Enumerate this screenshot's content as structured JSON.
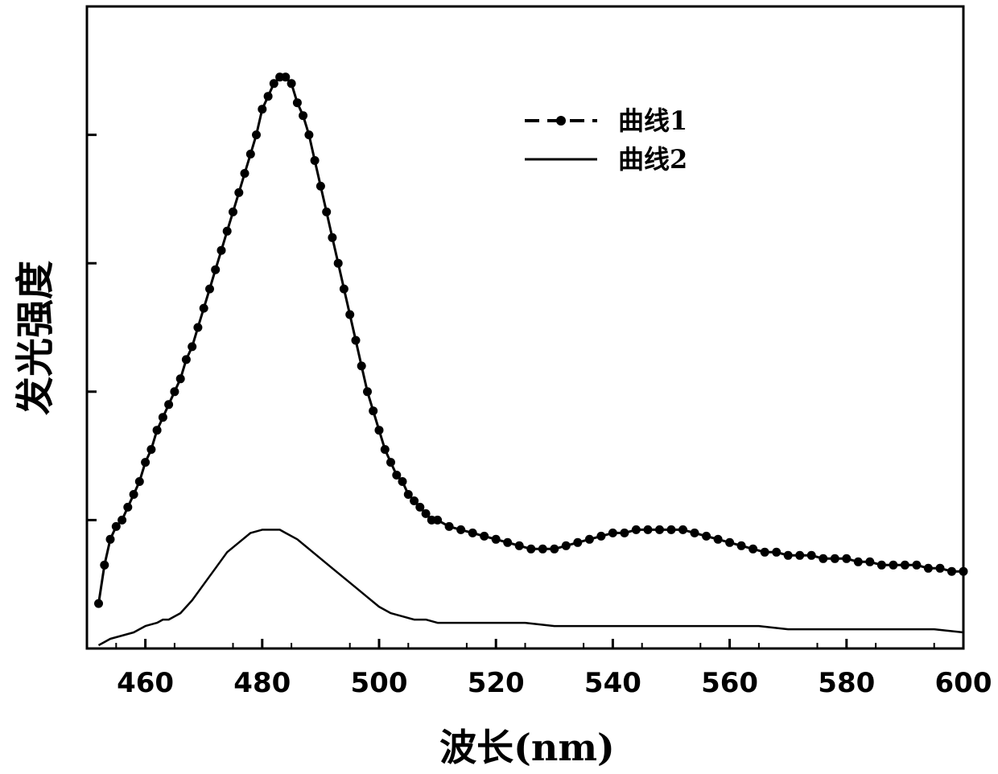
{
  "chart_data": {
    "type": "line",
    "title": "",
    "xlabel": "波长(nm)",
    "ylabel": "发光强度",
    "xlim": [
      450,
      600
    ],
    "ylim": [
      0,
      100
    ],
    "x_ticks": [
      460,
      480,
      500,
      520,
      540,
      560,
      580,
      600
    ],
    "x_tick_labels": [
      "460",
      "480",
      "500",
      "520",
      "540",
      "560",
      "580",
      "600"
    ],
    "y_ticks": [
      20,
      40,
      60,
      80,
      100
    ],
    "y_tick_labels_visible": false,
    "grid": false,
    "legend_position": "top-right",
    "series": [
      {
        "name": "曲线1",
        "style": "dashed line with filled circle markers",
        "color": "#000000",
        "x": [
          452,
          453,
          454,
          455,
          456,
          457,
          458,
          459,
          460,
          461,
          462,
          463,
          464,
          465,
          466,
          467,
          468,
          469,
          470,
          471,
          472,
          473,
          474,
          475,
          476,
          477,
          478,
          479,
          480,
          481,
          482,
          483,
          484,
          485,
          486,
          487,
          488,
          489,
          490,
          491,
          492,
          493,
          494,
          495,
          496,
          497,
          498,
          499,
          500,
          501,
          502,
          503,
          504,
          505,
          506,
          507,
          508,
          509,
          510,
          512,
          514,
          516,
          518,
          520,
          522,
          524,
          526,
          528,
          530,
          532,
          534,
          536,
          538,
          540,
          542,
          544,
          546,
          548,
          550,
          552,
          554,
          556,
          558,
          560,
          562,
          564,
          566,
          568,
          570,
          572,
          574,
          576,
          578,
          580,
          582,
          584,
          586,
          588,
          590,
          592,
          594,
          596,
          598,
          600
        ],
        "y": [
          7,
          13,
          17,
          19,
          20,
          22,
          24,
          26,
          29,
          31,
          34,
          36,
          38,
          40,
          42,
          45,
          47,
          50,
          53,
          56,
          59,
          62,
          65,
          68,
          71,
          74,
          77,
          80,
          84,
          86,
          88,
          89,
          89,
          88,
          85,
          83,
          80,
          76,
          72,
          68,
          64,
          60,
          56,
          52,
          48,
          44,
          40,
          37,
          34,
          31,
          29,
          27,
          26,
          24,
          23,
          22,
          21,
          20,
          20,
          19,
          18.5,
          18,
          17.5,
          17,
          16.5,
          16,
          15.5,
          15.5,
          15.5,
          16,
          16.5,
          17,
          17.5,
          18,
          18,
          18.5,
          18.5,
          18.5,
          18.5,
          18.5,
          18,
          17.5,
          17,
          16.5,
          16,
          15.5,
          15,
          15,
          14.5,
          14.5,
          14.5,
          14,
          14,
          14,
          13.5,
          13.5,
          13,
          13,
          13,
          13,
          12.5,
          12.5,
          12,
          12
        ]
      },
      {
        "name": "曲线2",
        "style": "solid line",
        "color": "#000000",
        "x": [
          452,
          453,
          454,
          456,
          458,
          460,
          462,
          463,
          464,
          465,
          466,
          468,
          470,
          472,
          474,
          476,
          478,
          480,
          482,
          483,
          484,
          486,
          488,
          490,
          492,
          494,
          496,
          498,
          500,
          502,
          504,
          506,
          508,
          510,
          515,
          520,
          525,
          530,
          535,
          540,
          545,
          550,
          555,
          560,
          565,
          570,
          575,
          580,
          585,
          590,
          595,
          600
        ],
        "y": [
          0.5,
          1,
          1.5,
          2,
          2.5,
          3.5,
          4,
          4.5,
          4.5,
          5,
          5.5,
          7.5,
          10,
          12.5,
          15,
          16.5,
          18,
          18.5,
          18.5,
          18.5,
          18,
          17,
          15.5,
          14,
          12.5,
          11,
          9.5,
          8,
          6.5,
          5.5,
          5,
          4.5,
          4.5,
          4,
          4,
          4,
          4,
          3.5,
          3.5,
          3.5,
          3.5,
          3.5,
          3.5,
          3.5,
          3.5,
          3,
          3,
          3,
          3,
          3,
          3,
          2.5
        ]
      }
    ]
  }
}
